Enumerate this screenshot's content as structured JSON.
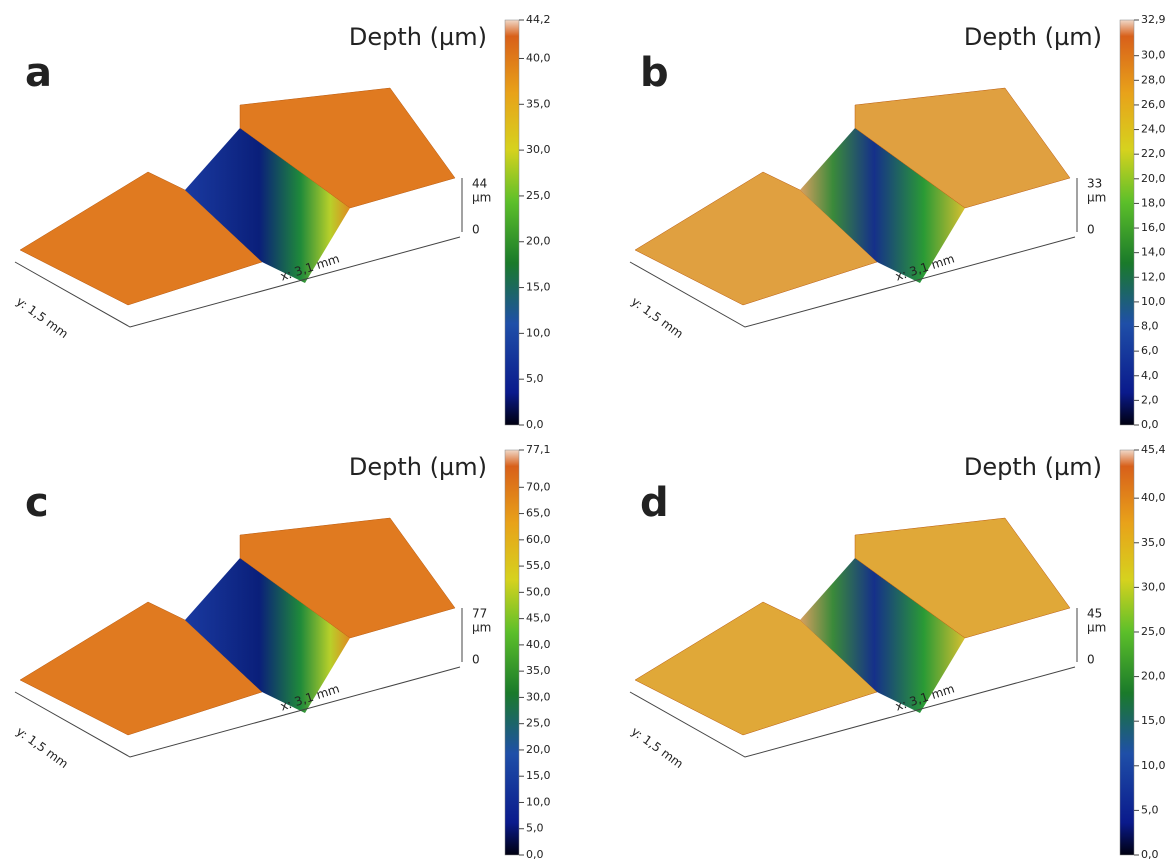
{
  "panels": [
    {
      "label": "a",
      "depth_title": "Depth (µm)",
      "height_label": "44",
      "unit": "µm",
      "zero": "0",
      "x_axis": "x: 3,1 mm",
      "y_axis": "y: 1,5 mm",
      "colorbar_ticks": [
        {
          "value": 44.2,
          "label": "44,2"
        },
        {
          "value": 40,
          "label": "40,0"
        },
        {
          "value": 35,
          "label": "35,0"
        },
        {
          "value": 30,
          "label": "30,0"
        },
        {
          "value": 25,
          "label": "25,0"
        },
        {
          "value": 20,
          "label": "20,0"
        },
        {
          "value": 15,
          "label": "15,0"
        },
        {
          "value": 10,
          "label": "10,0"
        },
        {
          "value": 5,
          "label": "5,0"
        },
        {
          "value": 0,
          "label": "0,0"
        }
      ]
    },
    {
      "label": "b",
      "depth_title": "Depth (µm)",
      "height_label": "33",
      "unit": "µm",
      "zero": "0",
      "x_axis": "x: 3,1 mm",
      "y_axis": "y: 1,5 mm",
      "colorbar_ticks": [
        {
          "value": 32.9,
          "label": "32,9"
        },
        {
          "value": 30,
          "label": "30,0"
        },
        {
          "value": 28,
          "label": "28,0"
        },
        {
          "value": 26,
          "label": "26,0"
        },
        {
          "value": 24,
          "label": "24,0"
        },
        {
          "value": 22,
          "label": "22,0"
        },
        {
          "value": 20,
          "label": "20,0"
        },
        {
          "value": 18,
          "label": "18,0"
        },
        {
          "value": 16,
          "label": "16,0"
        },
        {
          "value": 14,
          "label": "14,0"
        },
        {
          "value": 12,
          "label": "12,0"
        },
        {
          "value": 10,
          "label": "10,0"
        },
        {
          "value": 8,
          "label": "8,0"
        },
        {
          "value": 6,
          "label": "6,0"
        },
        {
          "value": 4,
          "label": "4,0"
        },
        {
          "value": 2,
          "label": "2,0"
        },
        {
          "value": 0,
          "label": "0,0"
        }
      ]
    },
    {
      "label": "c",
      "depth_title": "Depth (µm)",
      "height_label": "77",
      "unit": "µm",
      "zero": "0",
      "x_axis": "x: 3,1 mm",
      "y_axis": "y: 1,5 mm",
      "colorbar_ticks": [
        {
          "value": 77.1,
          "label": "77,1"
        },
        {
          "value": 70,
          "label": "70,0"
        },
        {
          "value": 65,
          "label": "65,0"
        },
        {
          "value": 60,
          "label": "60,0"
        },
        {
          "value": 55,
          "label": "55,0"
        },
        {
          "value": 50,
          "label": "50,0"
        },
        {
          "value": 45,
          "label": "45,0"
        },
        {
          "value": 40,
          "label": "40,0"
        },
        {
          "value": 35,
          "label": "35,0"
        },
        {
          "value": 30,
          "label": "30,0"
        },
        {
          "value": 25,
          "label": "25,0"
        },
        {
          "value": 20,
          "label": "20,0"
        },
        {
          "value": 15,
          "label": "15,0"
        },
        {
          "value": 10,
          "label": "10,0"
        },
        {
          "value": 5,
          "label": "5,0"
        },
        {
          "value": 0,
          "label": "0,0"
        }
      ]
    },
    {
      "label": "d",
      "depth_title": "Depth (µm)",
      "height_label": "45",
      "unit": "µm",
      "zero": "0",
      "x_axis": "x: 3,1 mm",
      "y_axis": "y: 1,5 mm",
      "colorbar_ticks": [
        {
          "value": 45.4,
          "label": "45,4"
        },
        {
          "value": 40,
          "label": "40,0"
        },
        {
          "value": 35,
          "label": "35,0"
        },
        {
          "value": 30,
          "label": "30,0"
        },
        {
          "value": 25,
          "label": "25,0"
        },
        {
          "value": 20,
          "label": "20,0"
        },
        {
          "value": 15,
          "label": "15,0"
        },
        {
          "value": 10,
          "label": "10,0"
        },
        {
          "value": 5,
          "label": "5,0"
        },
        {
          "value": 0,
          "label": "0,0"
        }
      ]
    }
  ]
}
